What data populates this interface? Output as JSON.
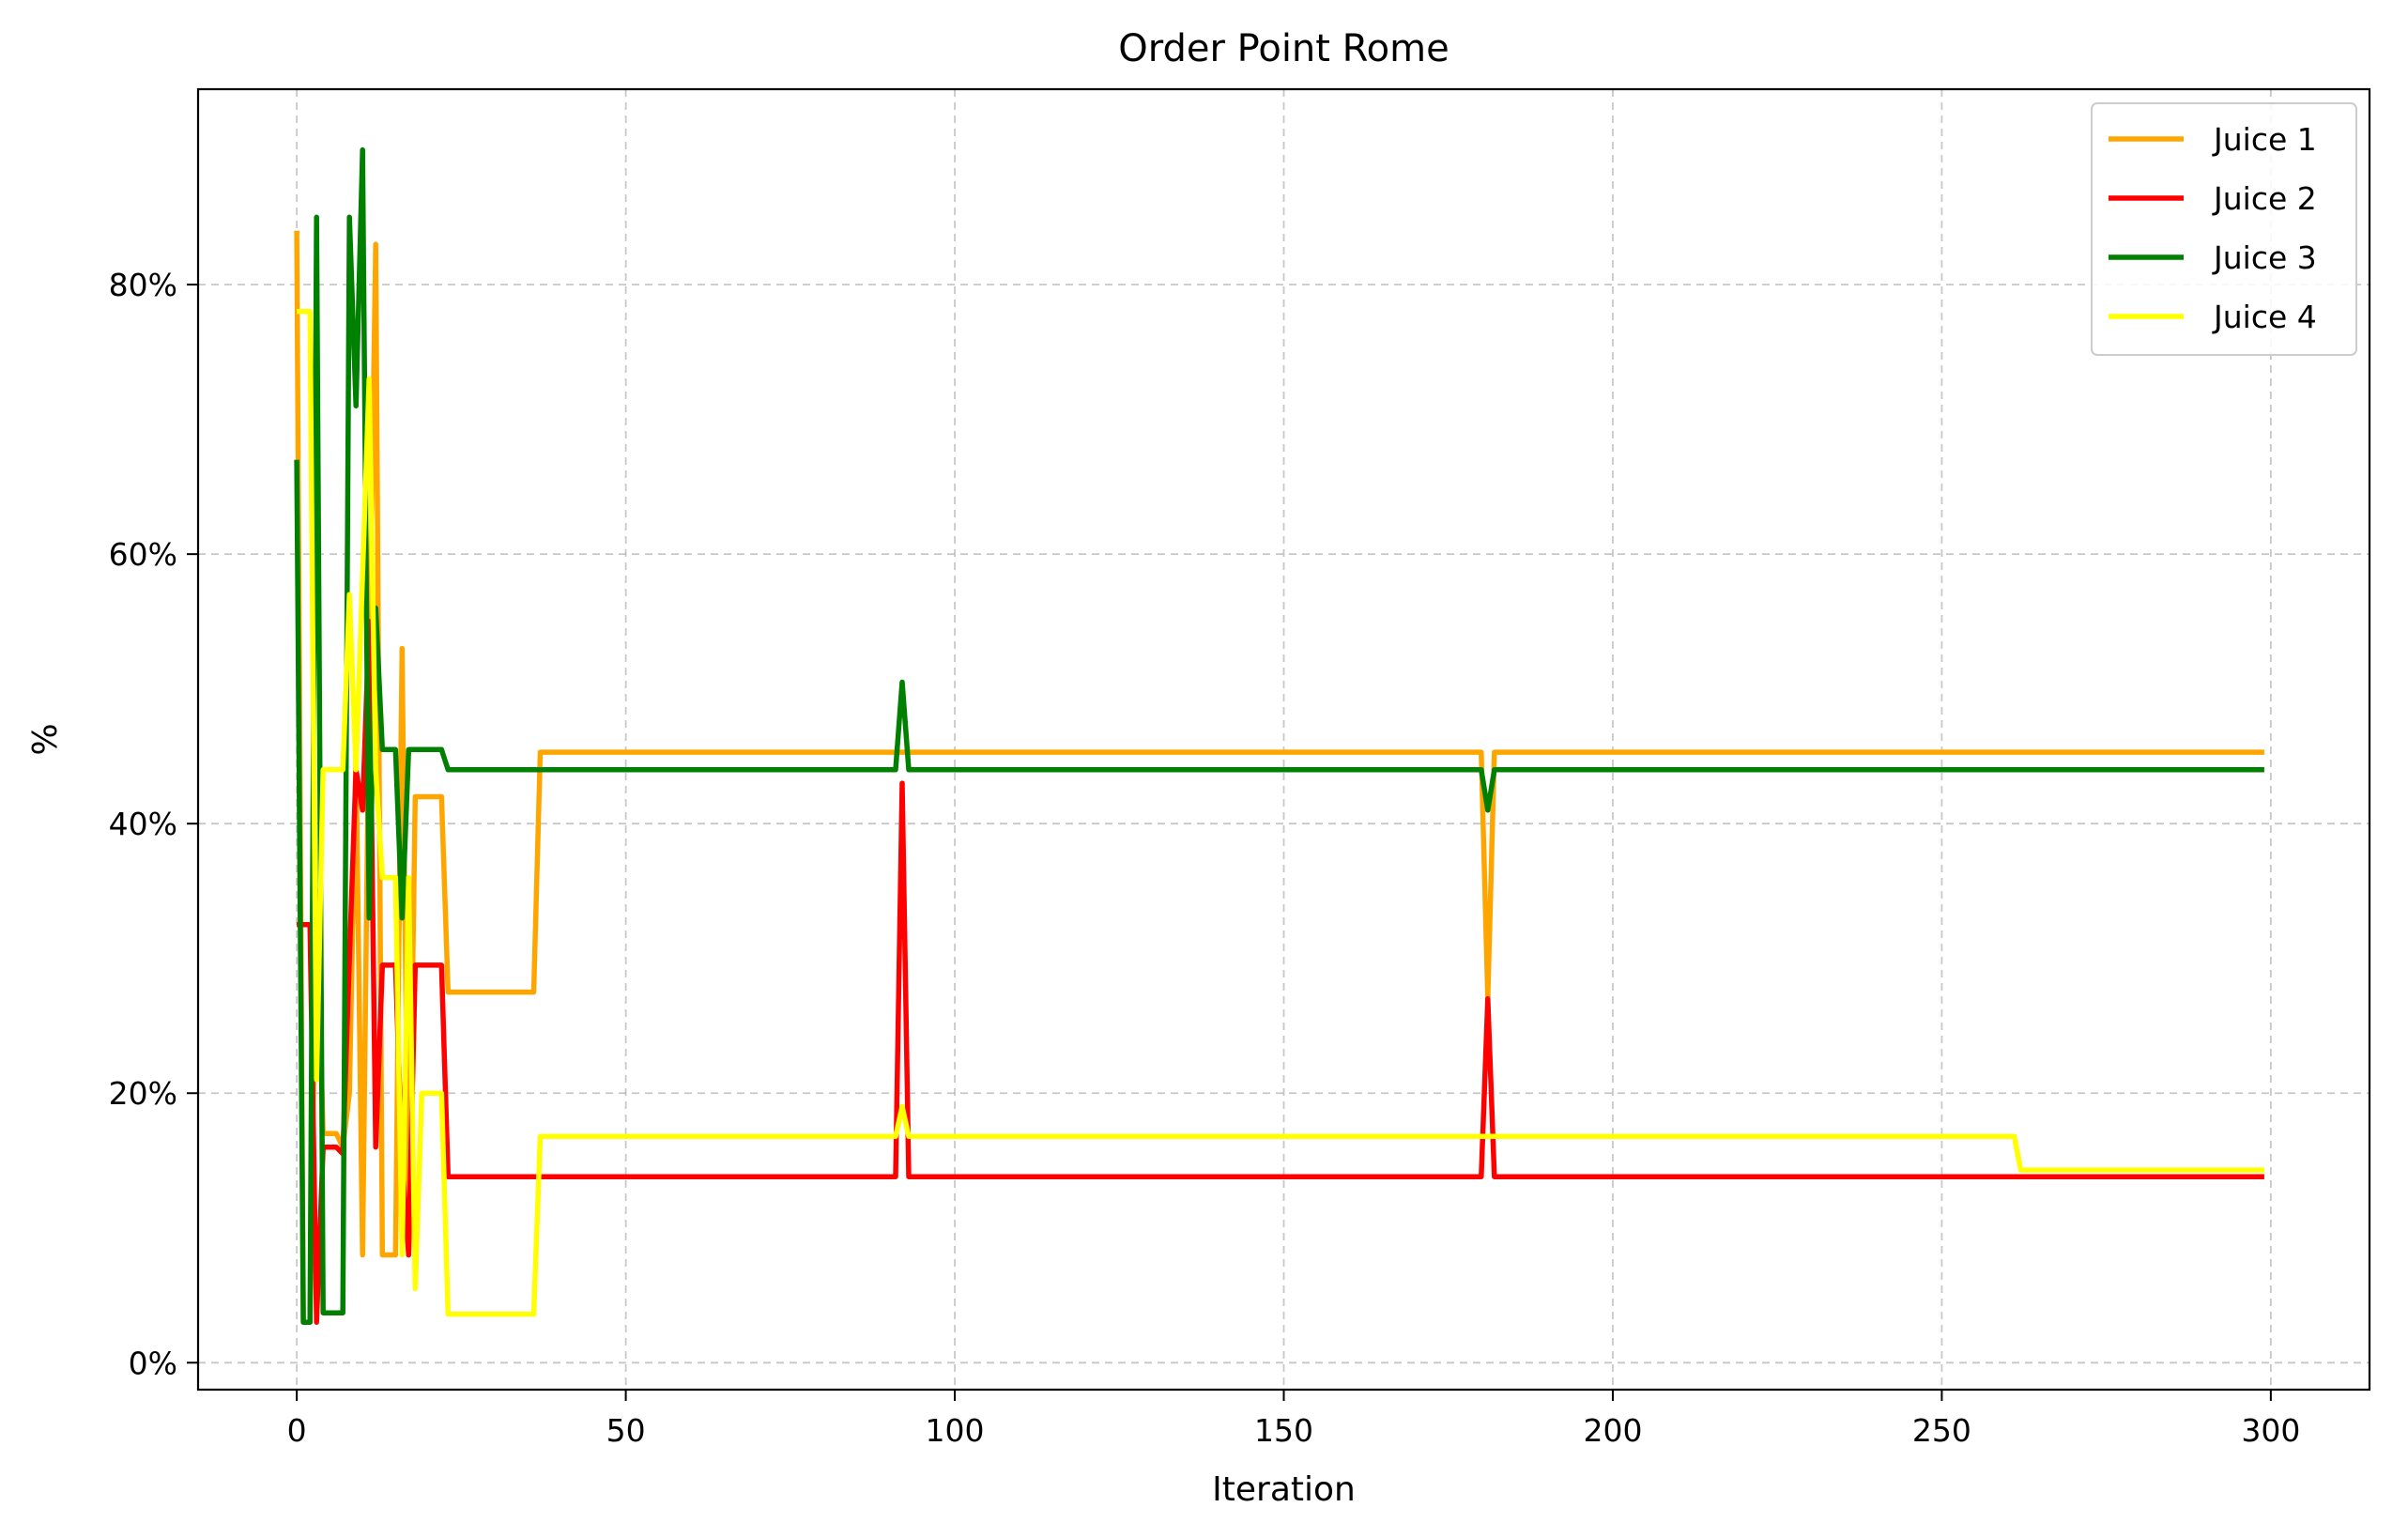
{
  "chart_data": {
    "type": "line",
    "title": "Order Point Rome",
    "xlabel": "Iteration",
    "ylabel": "%",
    "xlim": [
      -15,
      315
    ],
    "ylim": [
      -0.02,
      0.945
    ],
    "x_ticks": [
      0,
      50,
      100,
      150,
      200,
      250,
      300
    ],
    "x_tick_labels": [
      "0",
      "50",
      "100",
      "150",
      "200",
      "250",
      "300"
    ],
    "y_ticks": [
      0,
      0.2,
      0.4,
      0.6,
      0.8
    ],
    "y_tick_labels": [
      "0%",
      "20%",
      "40%",
      "60%",
      "80%"
    ],
    "grid": true,
    "legend_position": "top-right",
    "series": [
      {
        "name": "Juice 1",
        "color": "#ffa500",
        "points": [
          [
            0,
            0.84
          ],
          [
            1,
            0.03
          ],
          [
            2,
            0.03
          ],
          [
            3,
            0.35
          ],
          [
            4,
            0.17
          ],
          [
            6,
            0.17
          ],
          [
            7,
            0.16
          ],
          [
            8,
            0.2
          ],
          [
            9,
            0.45
          ],
          [
            10,
            0.08
          ],
          [
            11,
            0.5
          ],
          [
            12,
            0.83
          ],
          [
            13,
            0.08
          ],
          [
            15,
            0.08
          ],
          [
            16,
            0.53
          ],
          [
            17,
            0.08
          ],
          [
            18,
            0.42
          ],
          [
            22,
            0.42
          ],
          [
            23,
            0.275
          ],
          [
            36,
            0.275
          ],
          [
            37,
            0.453
          ],
          [
            180,
            0.453
          ],
          [
            181,
            0.27
          ],
          [
            182,
            0.453
          ],
          [
            299,
            0.453
          ]
        ]
      },
      {
        "name": "Juice 2",
        "color": "#ff0000",
        "points": [
          [
            0,
            0.325
          ],
          [
            2,
            0.325
          ],
          [
            3,
            0.03
          ],
          [
            4,
            0.16
          ],
          [
            6,
            0.16
          ],
          [
            7,
            0.155
          ],
          [
            8,
            0.3
          ],
          [
            9,
            0.44
          ],
          [
            10,
            0.41
          ],
          [
            11,
            0.55
          ],
          [
            12,
            0.16
          ],
          [
            13,
            0.295
          ],
          [
            15,
            0.295
          ],
          [
            16,
            0.15
          ],
          [
            17,
            0.08
          ],
          [
            18,
            0.295
          ],
          [
            22,
            0.295
          ],
          [
            23,
            0.138
          ],
          [
            91,
            0.138
          ],
          [
            92,
            0.43
          ],
          [
            93,
            0.138
          ],
          [
            180,
            0.138
          ],
          [
            181,
            0.27
          ],
          [
            182,
            0.138
          ],
          [
            299,
            0.138
          ]
        ]
      },
      {
        "name": "Juice 3",
        "color": "#008000",
        "points": [
          [
            0,
            0.67
          ],
          [
            1,
            0.03
          ],
          [
            2,
            0.03
          ],
          [
            3,
            0.85
          ],
          [
            4,
            0.037
          ],
          [
            7,
            0.037
          ],
          [
            8,
            0.85
          ],
          [
            9,
            0.71
          ],
          [
            10,
            0.9
          ],
          [
            11,
            0.33
          ],
          [
            12,
            0.56
          ],
          [
            13,
            0.455
          ],
          [
            15,
            0.455
          ],
          [
            16,
            0.33
          ],
          [
            17,
            0.455
          ],
          [
            22,
            0.455
          ],
          [
            23,
            0.44
          ],
          [
            91,
            0.44
          ],
          [
            92,
            0.505
          ],
          [
            93,
            0.44
          ],
          [
            180,
            0.44
          ],
          [
            181,
            0.41
          ],
          [
            182,
            0.44
          ],
          [
            299,
            0.44
          ]
        ]
      },
      {
        "name": "Juice 4",
        "color": "#ffff00",
        "points": [
          [
            0,
            0.78
          ],
          [
            2,
            0.78
          ],
          [
            3,
            0.21
          ],
          [
            4,
            0.44
          ],
          [
            7,
            0.44
          ],
          [
            8,
            0.57
          ],
          [
            9,
            0.44
          ],
          [
            11,
            0.73
          ],
          [
            12,
            0.44
          ],
          [
            13,
            0.36
          ],
          [
            15,
            0.36
          ],
          [
            16,
            0.08
          ],
          [
            17,
            0.36
          ],
          [
            18,
            0.055
          ],
          [
            19,
            0.2
          ],
          [
            22,
            0.2
          ],
          [
            23,
            0.036
          ],
          [
            36,
            0.036
          ],
          [
            37,
            0.168
          ],
          [
            91,
            0.168
          ],
          [
            92,
            0.19
          ],
          [
            93,
            0.168
          ],
          [
            261,
            0.168
          ],
          [
            262,
            0.143
          ],
          [
            299,
            0.143
          ]
        ]
      }
    ]
  }
}
